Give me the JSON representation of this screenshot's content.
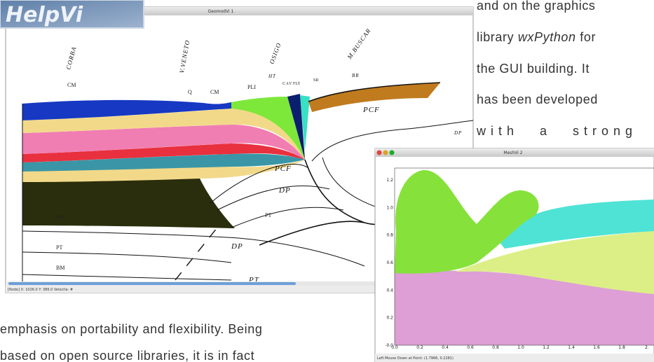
{
  "logo": "HelpVi",
  "geomod_window": {
    "title": "GeomodVi 1",
    "section_names": [
      "CORBA",
      "V.VENETO",
      "OSIGO",
      "M.BUSCAR"
    ],
    "unit_labels": [
      "CM",
      "Q",
      "CM",
      "PLI",
      "HT",
      "CAV",
      "FLY",
      "SR",
      "BR",
      "PCF",
      "DP",
      "PCF",
      "DP",
      "PT",
      "DP",
      "PT",
      "DP",
      "BM",
      "PT"
    ],
    "status": "[Nodo]  X: 1026.0  Y: 386.0  Velocita: #"
  },
  "mesh_window": {
    "title": "MeshVi 2",
    "y_ticks": [
      "1.2",
      "1.0",
      "0.8",
      "0.6",
      "0.4",
      "0.2",
      "-0.0"
    ],
    "x_ticks": [
      "0.0",
      "0.2",
      "0.4",
      "0.6",
      "0.8",
      "1.0",
      "1.2",
      "1.4",
      "1.6",
      "1.8",
      "2."
    ],
    "status": "Left Mouse Down at Point: (1.7966, 0.2281)"
  },
  "text": {
    "right_lines": [
      [
        "and on the graphics"
      ],
      [
        "library ",
        "wxPython",
        " for"
      ],
      [
        "the GUI building. It"
      ],
      [
        "has been developed"
      ],
      [
        "with a strong"
      ]
    ],
    "bottom_lines": [
      "emphasis on portability and flexibility. Being",
      "based on open source libraries, it is in fact"
    ]
  }
}
